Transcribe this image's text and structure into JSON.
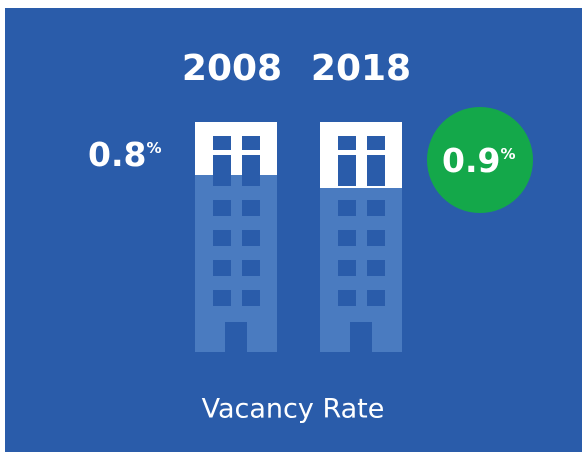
{
  "years": [
    "2008",
    "2018"
  ],
  "rates": [
    {
      "number": "0.8",
      "unit": "%"
    },
    {
      "number": "0.9",
      "unit": "%"
    }
  ],
  "caption": "Vacancy Rate"
}
